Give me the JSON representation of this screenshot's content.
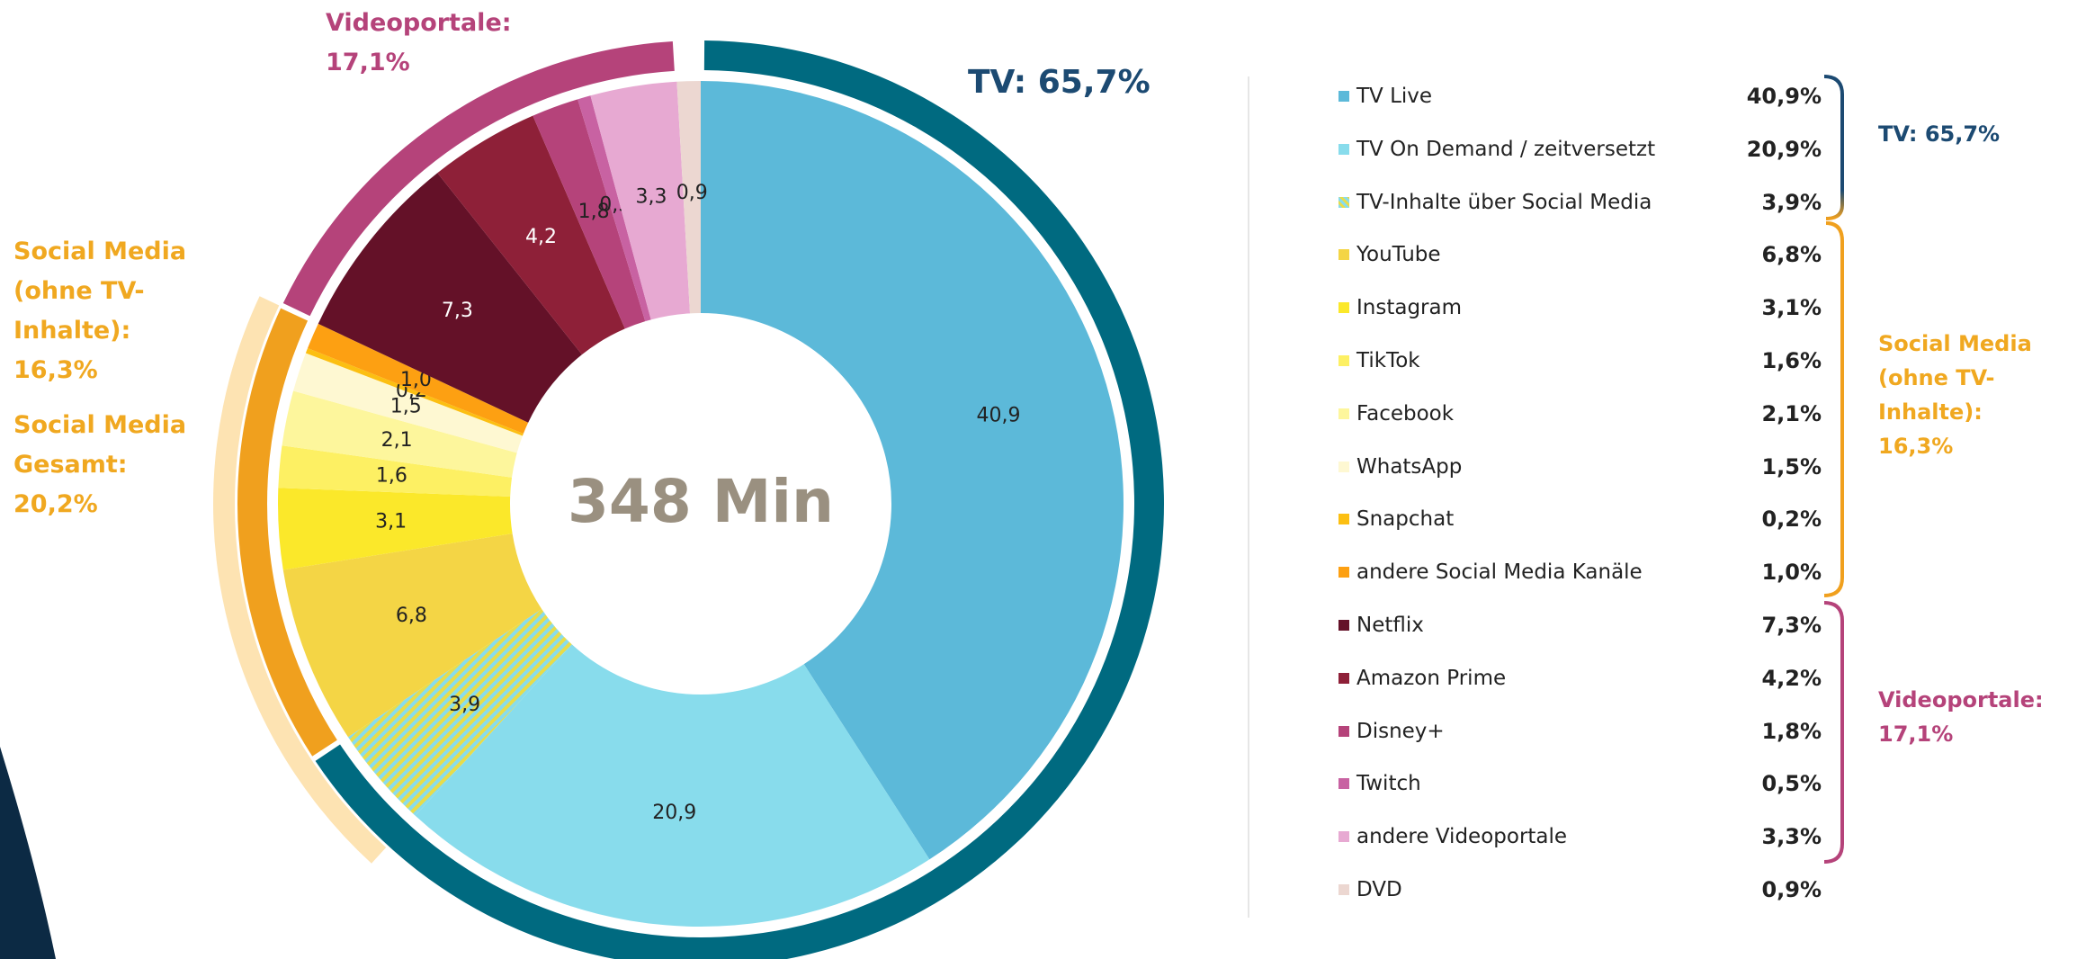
{
  "chart_data": {
    "type": "donut",
    "center_label": "348 Min",
    "categories": [
      "TV Live",
      "TV On Demand / zeitversetzt",
      "TV-Inhalte über Social Media",
      "YouTube",
      "Instagram",
      "TikTok",
      "Facebook",
      "WhatsApp",
      "Snapchat",
      "andere Social Media Kanäle",
      "Netflix",
      "Amazon Prime",
      "Disney+",
      "Twitch",
      "andere Videoportale",
      "DVD"
    ],
    "values": [
      40.9,
      20.9,
      3.9,
      6.8,
      3.1,
      1.6,
      2.1,
      1.5,
      0.2,
      1.0,
      7.3,
      4.2,
      1.8,
      0.5,
      3.3,
      0.9
    ],
    "value_labels": [
      "40,9",
      "20,9",
      "3,9",
      "6,8",
      "3,1",
      "1,6",
      "2,1",
      "1,5",
      "0,2",
      "1,0",
      "7,3",
      "4,2",
      "1,8",
      "0,5",
      "3,3",
      "0,9"
    ],
    "legend_value_labels": [
      "40,9%",
      "20,9%",
      "3,9%",
      "6,8%",
      "3,1%",
      "1,6%",
      "2,1%",
      "1,5%",
      "0,2%",
      "1,0%",
      "7,3%",
      "4,2%",
      "1,8%",
      "0,5%",
      "3,3%",
      "0,9%"
    ],
    "colors": [
      "#5cb9d9",
      "#88dcec",
      "#88dcec",
      "#f4d545",
      "#fbe82a",
      "#fdf063",
      "#fdf69c",
      "#fef8d2",
      "#fcbf12",
      "#fda012",
      "#641128",
      "#8e2038",
      "#b5437a",
      "#c862a2",
      "#e7a9d2",
      "#ecd7d1"
    ],
    "hatch": {
      "index": 2,
      "color": "#e8dc4a"
    },
    "groups": [
      {
        "title": "TV:",
        "value": 65.7,
        "value_label": "65,7%",
        "color": "#006a80",
        "text_color": "#1c4a72"
      },
      {
        "title": "Social Media (ohne TV-Inhalte):",
        "value": 16.3,
        "value_label": "16,3%",
        "color": "#f0a01e",
        "text_color": "#f0a820"
      },
      {
        "title": "Videoportale:",
        "value": 17.1,
        "value_label": "17,1%",
        "color": "#b5437a",
        "text_color": "#b5437a"
      }
    ],
    "total_group": {
      "title": "Social Media Gesamt:",
      "value": 20.2,
      "value_label": "20,2%",
      "color": "#fde3b2",
      "text_color": "#f0a820"
    }
  }
}
